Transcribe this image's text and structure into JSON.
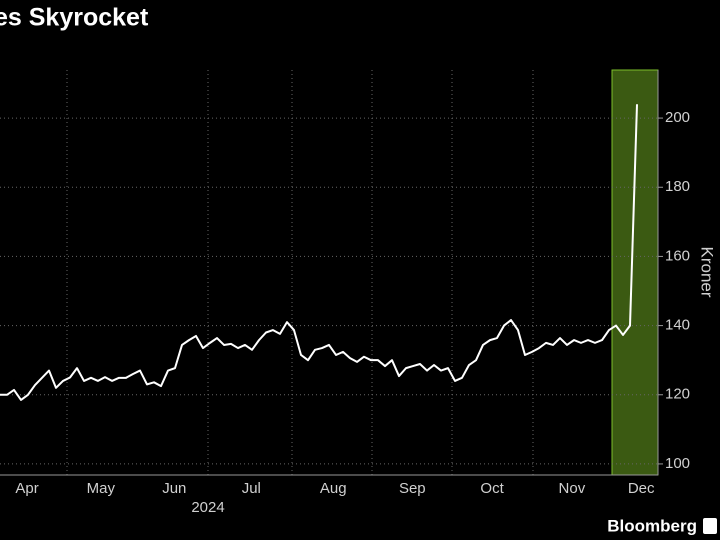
{
  "chart_data": {
    "type": "line",
    "title": "es  Skyrocket",
    "y_label": "Kroner",
    "year_label": "2024",
    "source": "Bloomberg",
    "series": [
      {
        "name": null,
        "color": "#ffffff",
        "values": [
          120,
          120,
          121.4,
          118.5,
          120,
          122.8,
          124.9,
          127,
          122,
          124,
          125,
          127.7,
          124,
          124.9,
          124,
          125.1,
          124,
          124.9,
          124.9,
          126,
          127,
          123,
          123.6,
          122.5,
          127,
          127.7,
          134.4,
          135.8,
          137,
          133.5,
          135,
          136.4,
          134.4,
          134.7,
          133.5,
          134.4,
          133,
          135.8,
          138,
          138.7,
          137.6,
          141,
          138.7,
          131.5,
          130,
          133,
          133.5,
          134.4,
          131.5,
          132.4,
          130.6,
          129.5,
          131,
          130,
          130,
          128.3,
          130,
          125.4,
          127.7,
          128.3,
          128.9,
          127,
          128.6,
          127,
          127.7,
          124,
          124.9,
          128.6,
          130,
          134.4,
          135.8,
          136.4,
          140,
          141.6,
          138.7,
          131.5,
          132.4,
          133.5,
          135,
          134.4,
          136.4,
          134.4,
          135.8,
          135,
          135.8,
          135,
          135.8,
          138.7,
          140,
          137.3,
          140,
          204
        ]
      }
    ],
    "xlim": [
      0,
      94
    ],
    "xticks": [
      {
        "value": 3.86,
        "label": "Apr"
      },
      {
        "value": 14.4,
        "label": "May"
      },
      {
        "value": 24.9,
        "label": "Jun"
      },
      {
        "value": 35.9,
        "label": "Jul"
      },
      {
        "value": 47.6,
        "label": "Aug"
      },
      {
        "value": 58.9,
        "label": "Sep"
      },
      {
        "value": 70.3,
        "label": "Oct"
      },
      {
        "value": 81.7,
        "label": "Nov"
      },
      {
        "value": 91.6,
        "label": "Dec"
      }
    ],
    "ylim": [
      96.8,
      213.9
    ],
    "yticks": [
      100,
      120,
      140,
      160,
      180,
      200
    ],
    "grid": true
  }
}
